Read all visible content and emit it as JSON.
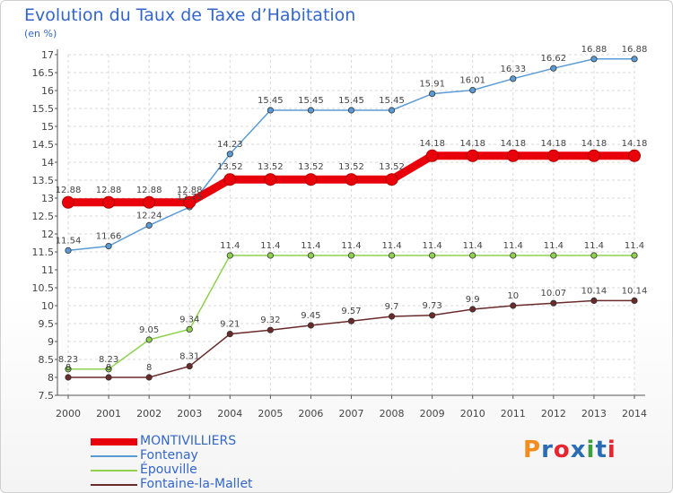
{
  "title": "Evolution du Taux de Taxe d’Habitation",
  "unit": "(en %)",
  "logo": {
    "text": "Proxiti",
    "letter_colors": [
      "#f28c1e",
      "#2b6db5",
      "#e8242f",
      "#2b6db5",
      "#3c9f3c",
      "#2b6db5",
      "#e8242f"
    ]
  },
  "chart_data": {
    "type": "line",
    "x": [
      2000,
      2001,
      2002,
      2003,
      2004,
      2005,
      2006,
      2007,
      2008,
      2009,
      2010,
      2011,
      2012,
      2013,
      2014
    ],
    "ylim": [
      7.5,
      17
    ],
    "yticks": [
      7.5,
      8,
      8.5,
      9,
      9.5,
      10,
      10.5,
      11,
      11.5,
      12,
      12.5,
      13,
      13.5,
      14,
      14.5,
      15,
      15.5,
      16,
      16.5,
      17
    ],
    "grid": true,
    "legend_position": "bottom-left",
    "series": [
      {
        "name": "MONTIVILLIERS",
        "color": "#e8000b",
        "values": [
          12.88,
          12.88,
          12.88,
          12.88,
          13.52,
          13.52,
          13.52,
          13.52,
          13.52,
          14.18,
          14.18,
          14.18,
          14.18,
          14.18,
          14.18
        ],
        "labels": [
          "12.88",
          "12.88",
          "12.88",
          "12.88",
          "13.52",
          "13.52",
          "13.52",
          "13.52",
          "13.52",
          "14.18",
          "14.18",
          "14.18",
          "14.18",
          "14.18",
          "14.18"
        ]
      },
      {
        "name": "Fontenay",
        "color": "#5b9bd5",
        "values": [
          11.54,
          11.66,
          12.24,
          12.75,
          14.23,
          15.45,
          15.45,
          15.45,
          15.45,
          15.91,
          16.01,
          16.33,
          16.62,
          16.88,
          16.88
        ],
        "labels": [
          "11.54",
          "11.66",
          "12.24",
          "12.75",
          "14.23",
          "15.45",
          "15.45",
          "15.45",
          "15.45",
          "15.91",
          "16.01",
          "16.33",
          "16.62",
          "16.88",
          "16.88"
        ]
      },
      {
        "name": "Épouville",
        "color": "#8fd14f",
        "values": [
          8.23,
          8.23,
          9.05,
          9.34,
          11.4,
          11.4,
          11.4,
          11.4,
          11.4,
          11.4,
          11.4,
          11.4,
          11.4,
          11.4,
          11.4
        ],
        "labels": [
          "8.23",
          "8.23",
          "9.05",
          "9.34",
          "11.4",
          "11.4",
          "11.4",
          "11.4",
          "11.4",
          "11.4",
          "11.4",
          "11.4",
          "11.4",
          "11.4",
          "11.4"
        ]
      },
      {
        "name": "Fontaine-la-Mallet",
        "color": "#6b2a2a",
        "values": [
          8,
          8,
          8,
          8.31,
          9.21,
          9.32,
          9.45,
          9.57,
          9.7,
          9.73,
          9.9,
          10,
          10.07,
          10.14,
          10.14
        ],
        "labels": [
          "8",
          "8",
          "8",
          "8.31",
          "9.21",
          "9.32",
          "9.45",
          "9.57",
          "9.7",
          "9.73",
          "9.9",
          "10",
          "10.07",
          "10.14",
          "10.14"
        ]
      }
    ]
  }
}
